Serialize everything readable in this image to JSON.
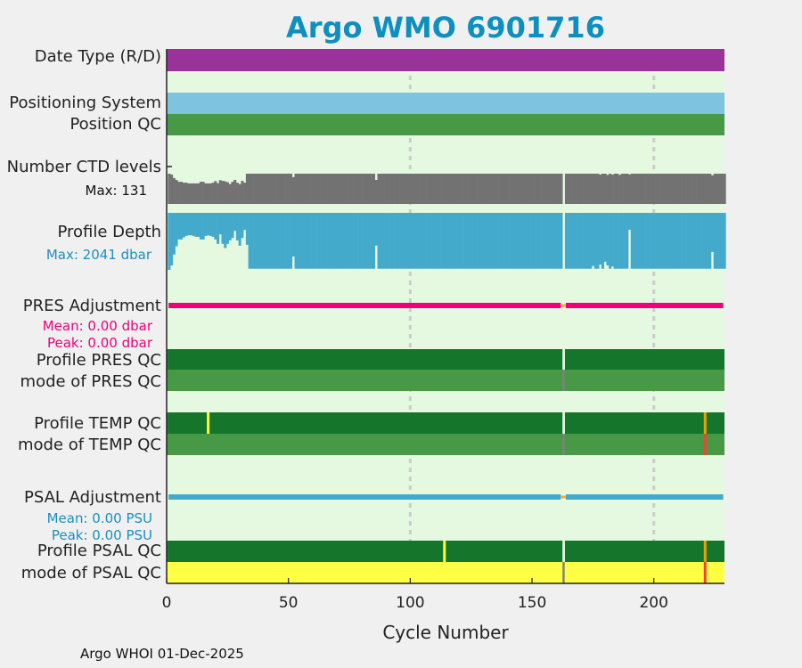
{
  "chart_data": {
    "type": "bar",
    "title": "Argo WMO 6901716",
    "xlabel": "Cycle Number",
    "xlim": [
      0,
      229
    ],
    "xticks": [
      0,
      50,
      100,
      150,
      200
    ],
    "grid_x": [
      100,
      200
    ],
    "n_cycles": 229,
    "missing_cycles": [
      163
    ],
    "rows": {
      "date_type": {
        "label": "Date Type (R/D)",
        "color": "#993399"
      },
      "positioning_system": {
        "label": "Positioning System",
        "color": "#7fc4de"
      },
      "position_qc": {
        "label": "Position QC",
        "color": "#479946"
      },
      "ctd_levels": {
        "label": "Number CTD levels",
        "max_label": "Max: 131",
        "max": 131,
        "color": "#727272",
        "early_values": [
          131,
          127,
          112,
          104,
          96,
          96,
          92,
          92,
          89,
          89,
          89,
          89,
          89,
          96,
          96,
          89,
          89,
          89,
          92,
          99,
          90,
          103,
          100,
          98,
          94,
          86,
          96,
          104,
          92,
          86,
          100,
          92,
          131
        ],
        "default": 131,
        "exceptions": {
          "52": 116,
          "86": 104,
          "178": 127,
          "181": 126,
          "183": 127,
          "186": 126,
          "190": 128,
          "224": 124
        }
      },
      "profile_depth": {
        "label": "Profile Depth",
        "max_label": "Max: 2041 dbar",
        "max": 2041,
        "color": "#44aacc",
        "early_values": [
          2041,
          1882,
          1491,
          1195,
          952,
          952,
          878,
          825,
          804,
          804,
          825,
          857,
          857,
          952,
          952,
          825,
          804,
          825,
          857,
          952,
          1110,
          772,
          1110,
          1258,
          1110,
          985,
          899,
          645,
          985,
          1174,
          899,
          613,
          1142
        ],
        "default": 2000,
        "exceptions": {
          "52": 1565,
          "86": 1174,
          "175": 1900,
          "178": 1850,
          "180": 1750,
          "181": 1880,
          "183": 1920,
          "190": 606,
          "224": 1400
        }
      },
      "pres_adjustment": {
        "label": "PRES Adjustment",
        "mean": "Mean: 0.00 dbar",
        "peak": "Peak: 0.00 dbar",
        "color": "#ee0077"
      },
      "profile_pres_qc": {
        "label": "Profile PRES QC",
        "color": "#15752a"
      },
      "mode_pres_qc": {
        "label": "mode of PRES QC",
        "color": "#479946"
      },
      "profile_temp_qc": {
        "label": "Profile TEMP QC",
        "color": "#15752a",
        "flags": [
          {
            "cycle": 17,
            "color": "#ffff33"
          },
          {
            "cycle": 221,
            "color": "#ee9f00"
          }
        ]
      },
      "mode_temp_qc": {
        "label": "mode of TEMP QC",
        "color": "#479946",
        "flags": [
          {
            "cycle": 221,
            "color": "#ee4433"
          }
        ]
      },
      "psal_adjustment": {
        "label": "PSAL Adjustment",
        "mean": "Mean: 0.00 PSU",
        "peak": "Peak: 0.00 PSU",
        "color": "#44aacc"
      },
      "profile_psal_qc": {
        "label": "Profile PSAL QC",
        "color": "#15752a",
        "flags": [
          {
            "cycle": 114,
            "color": "#ffff33"
          },
          {
            "cycle": 221,
            "color": "#ee9f00"
          }
        ]
      },
      "mode_psal_qc": {
        "label": "mode of PSAL QC",
        "color": "#ffff44",
        "flags": [
          {
            "cycle": 221,
            "color": "#ee4433"
          }
        ]
      }
    },
    "colors": {
      "background": "#e5f8e0",
      "missing_mode": "#808080",
      "adjust_gap": "#ffaa33",
      "grid": "#cccccc"
    }
  },
  "footer": "Argo WHOI 01-Dec-2025"
}
